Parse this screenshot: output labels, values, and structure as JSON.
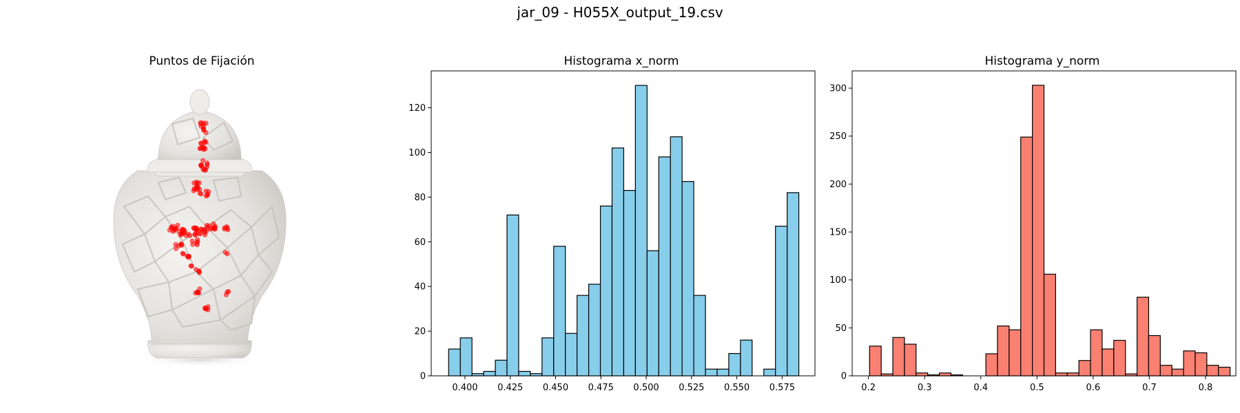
{
  "suptitle": "jar_09 - H055X_output_19.csv",
  "chart_data": [
    {
      "type": "image",
      "title": "Puntos de Fijación",
      "description_marks": "fixation points (red, semi-transparent) overlaid on a white openwork porcelain ginger jar",
      "point_color": "#ff0000"
    },
    {
      "type": "bar",
      "title": "Histograma x_norm",
      "xlabel": "",
      "ylabel": "",
      "color": "#87ceeb",
      "edgecolor": "#000000",
      "bin_start": 0.391,
      "bin_width": 0.00644,
      "values": [
        12,
        17,
        1,
        2,
        7,
        72,
        2,
        1,
        17,
        58,
        19,
        36,
        41,
        76,
        102,
        83,
        130,
        56,
        98,
        107,
        87,
        36,
        3,
        3,
        10,
        16,
        0,
        3,
        67,
        82
      ],
      "xlim": [
        0.3814,
        0.5931
      ],
      "ylim": [
        0,
        136.5
      ],
      "xticks": [
        0.4,
        0.425,
        0.45,
        0.475,
        0.5,
        0.525,
        0.55,
        0.575
      ],
      "xtick_labels": [
        "0.400",
        "0.425",
        "0.450",
        "0.475",
        "0.500",
        "0.525",
        "0.550",
        "0.575"
      ],
      "yticks": [
        0,
        20,
        40,
        60,
        80,
        100,
        120
      ],
      "ytick_labels": [
        "0",
        "20",
        "40",
        "60",
        "80",
        "100",
        "120"
      ],
      "grid": false
    },
    {
      "type": "bar",
      "title": "Histograma y_norm",
      "xlabel": "",
      "ylabel": "",
      "color": "#fa8072",
      "edgecolor": "#000000",
      "bin_start": 0.202,
      "bin_width": 0.0207,
      "values": [
        31,
        2,
        40,
        33,
        3,
        1,
        3,
        1,
        0,
        0,
        23,
        52,
        48,
        249,
        303,
        106,
        3,
        3,
        16,
        48,
        28,
        37,
        2,
        82,
        42,
        11,
        7,
        26,
        24,
        11,
        9
      ],
      "xlim": [
        0.171,
        0.854
      ],
      "ylim": [
        0,
        318
      ],
      "xticks": [
        0.2,
        0.3,
        0.4,
        0.5,
        0.6,
        0.7,
        0.8
      ],
      "xtick_labels": [
        "0.2",
        "0.3",
        "0.4",
        "0.5",
        "0.6",
        "0.7",
        "0.8"
      ],
      "yticks": [
        0,
        50,
        100,
        150,
        200,
        250,
        300
      ],
      "ytick_labels": [
        "0",
        "50",
        "100",
        "150",
        "200",
        "250",
        "300"
      ],
      "grid": false
    }
  ]
}
